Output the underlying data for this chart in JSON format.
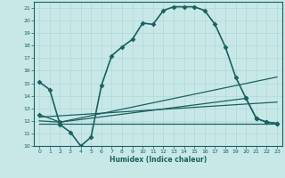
{
  "xlabel": "Humidex (Indice chaleur)",
  "bg_color": "#c8e8e8",
  "grid_color": "#b0d8d8",
  "line_color": "#1a6060",
  "xlim": [
    -0.5,
    23.5
  ],
  "ylim": [
    10,
    21.5
  ],
  "xticks": [
    0,
    1,
    2,
    3,
    4,
    5,
    6,
    7,
    8,
    9,
    10,
    11,
    12,
    13,
    14,
    15,
    16,
    17,
    18,
    19,
    20,
    21,
    22,
    23
  ],
  "yticks": [
    10,
    11,
    12,
    13,
    14,
    15,
    16,
    17,
    18,
    19,
    20,
    21
  ],
  "series": [
    {
      "x": [
        0,
        1,
        2,
        3,
        4,
        5,
        6,
        7,
        8,
        9,
        10,
        11,
        12,
        13,
        14,
        15,
        16,
        17,
        18,
        19,
        20,
        21,
        22,
        23
      ],
      "y": [
        15.1,
        14.5,
        11.7,
        11.1,
        10.0,
        10.7,
        14.8,
        17.2,
        17.9,
        18.5,
        19.8,
        19.7,
        20.8,
        21.1,
        21.1,
        21.1,
        20.8,
        19.7,
        17.9,
        15.5,
        13.8,
        12.2,
        11.9,
        11.8
      ],
      "marker": "D",
      "markersize": 2.5,
      "linewidth": 1.2
    },
    {
      "x": [
        0,
        23
      ],
      "y": [
        11.8,
        11.8
      ],
      "marker": null,
      "markersize": 0,
      "linewidth": 0.9
    },
    {
      "x": [
        0,
        23
      ],
      "y": [
        12.3,
        13.5
      ],
      "marker": null,
      "markersize": 0,
      "linewidth": 0.9
    },
    {
      "x": [
        0,
        2,
        23
      ],
      "y": [
        12.0,
        11.9,
        15.5
      ],
      "marker": null,
      "markersize": 0,
      "linewidth": 0.9
    },
    {
      "x": [
        0,
        2,
        20,
        21,
        22,
        23
      ],
      "y": [
        12.5,
        11.9,
        13.8,
        12.2,
        11.9,
        11.8
      ],
      "marker": "D",
      "markersize": 2.5,
      "linewidth": 0.9
    }
  ]
}
